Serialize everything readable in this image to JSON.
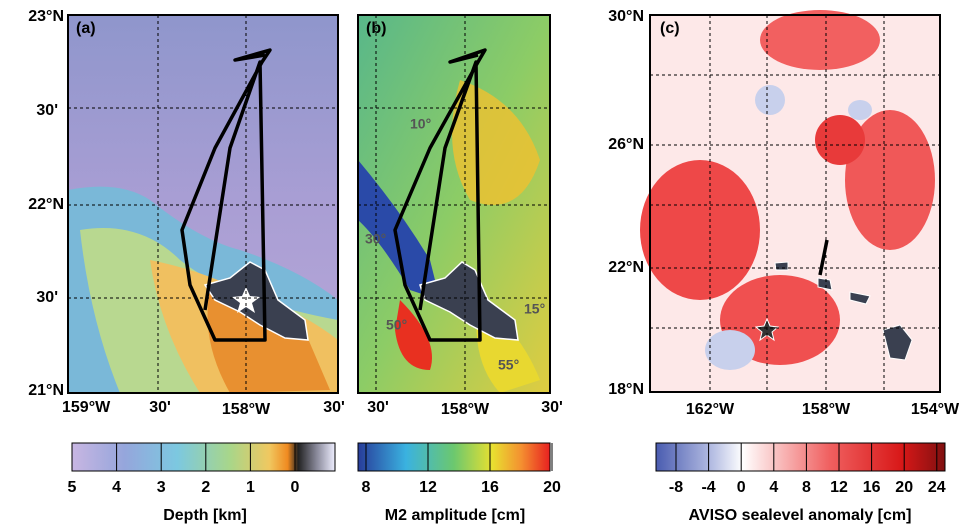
{
  "panels": [
    {
      "label": "(a)",
      "lat_labels": [
        "23°N",
        "30'",
        "22°N",
        "30'",
        "21°N"
      ],
      "lon_labels": [
        "159°W",
        "30'",
        "158°W",
        "30'"
      ]
    },
    {
      "label": "(b)",
      "lon_labels": [
        "30'",
        "158°W",
        "30'"
      ],
      "contour_labels": [
        "10°",
        "30°",
        "50°",
        "55°",
        "15°"
      ]
    },
    {
      "label": "(c)",
      "lat_labels": [
        "30°N",
        "26°N",
        "22°N",
        "18°N"
      ],
      "lon_labels": [
        "162°W",
        "158°W",
        "154°W"
      ]
    }
  ],
  "colorbars": [
    {
      "ticks": [
        5,
        4,
        3,
        2,
        1,
        0
      ],
      "label": "Depth [km]"
    },
    {
      "ticks": [
        8,
        12,
        16,
        20
      ],
      "label": "M2 amplitude [cm]"
    },
    {
      "ticks": [
        -8,
        -4,
        0,
        4,
        8,
        12,
        16,
        20,
        24
      ],
      "label": "AVISO sealevel anomaly [cm]"
    }
  ]
}
